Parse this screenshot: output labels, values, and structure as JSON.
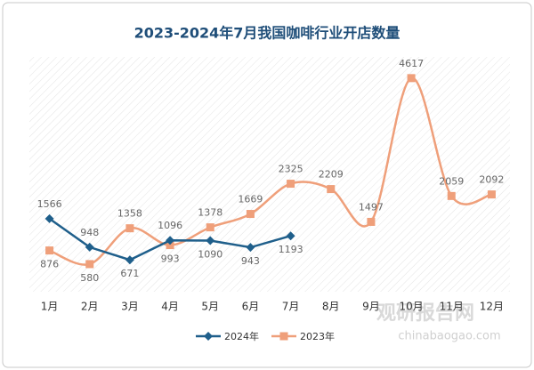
{
  "chart_data": {
    "type": "line",
    "title": "2023-2024年7月我国咖啡行业开店数量",
    "categories": [
      "1月",
      "2月",
      "3月",
      "4月",
      "5月",
      "6月",
      "7月",
      "8月",
      "9月",
      "10月",
      "11月",
      "12月"
    ],
    "series": [
      {
        "name": "2024年",
        "color": "#1f5f8b",
        "marker": "diamond",
        "smooth": false,
        "values": [
          1566,
          948,
          671,
          1096,
          1090,
          943,
          1193,
          null,
          null,
          null,
          null,
          null
        ]
      },
      {
        "name": "2023年",
        "color": "#ef9f7a",
        "marker": "square",
        "smooth": true,
        "values": [
          876,
          580,
          1358,
          993,
          1378,
          1669,
          2325,
          2209,
          1497,
          4617,
          2059,
          2092
        ]
      }
    ],
    "ylim": [
      0,
      5000
    ],
    "legend": "bottom",
    "watermark": [
      "观研报告网",
      "chinabaogao.com"
    ]
  }
}
